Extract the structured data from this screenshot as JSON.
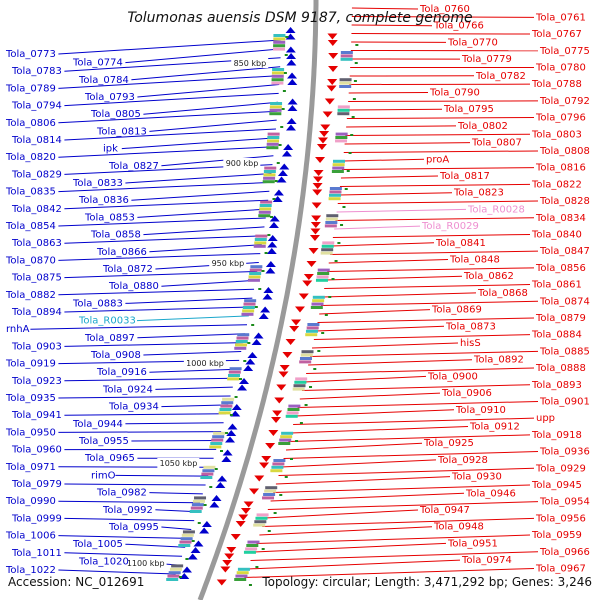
{
  "title": "Tolumonas auensis DSM 9187, complete genome",
  "footer": {
    "accession": "Accession: NC_012691",
    "summary": "Topology: circular; Length: 3,471,292 bp; Genes: 3,246"
  },
  "colors": {
    "forward": "#0000cc",
    "reverse": "#e60000",
    "rna_forward": "#1aa7cc",
    "rna_reverse": "#ee8fd0",
    "backbone": "#9a9a9a",
    "ticks": "#1a8a1a"
  },
  "kbp_markers": [
    "850 kbp",
    "900 kbp",
    "950 kbp",
    "1000 kbp",
    "1050 kbp",
    "1100 kbp"
  ],
  "left_labels": [
    "Tola_0773",
    "Tola_0774",
    "Tola_0783",
    "Tola_0784",
    "Tola_0789",
    "Tola_0793",
    "Tola_0794",
    "Tola_0805",
    "Tola_0806",
    "Tola_0813",
    "Tola_0814",
    "ipk",
    "Tola_0820",
    "Tola_0827",
    "Tola_0829",
    "Tola_0833",
    "Tola_0835",
    "Tola_0836",
    "Tola_0842",
    "Tola_0853",
    "Tola_0854",
    "Tola_0858",
    "Tola_0863",
    "Tola_0866",
    "Tola_0870",
    "Tola_0872",
    "Tola_0875",
    "Tola_0880",
    "Tola_0882",
    "Tola_0883",
    "Tola_0894",
    "Tola_R0033",
    "rnhA",
    "Tola_0897",
    "Tola_0903",
    "Tola_0908",
    "Tola_0919",
    "Tola_0916",
    "Tola_0923",
    "Tola_0924",
    "Tola_0935",
    "Tola_0934",
    "Tola_0941",
    "Tola_0944",
    "Tola_0950",
    "Tola_0955",
    "Tola_0960",
    "Tola_0965",
    "Tola_0971",
    "rimO",
    "Tola_0979",
    "Tola_0982",
    "Tola_0990",
    "Tola_0992",
    "Tola_0999",
    "Tola_0995",
    "Tola_1006",
    "Tola_1005",
    "Tola_1011",
    "Tola_1020",
    "Tola_1022"
  ],
  "right_labels": [
    "Tola_0760",
    "Tola_0761",
    "Tola_0766",
    "Tola_0767",
    "Tola_0770",
    "Tola_0775",
    "Tola_0779",
    "Tola_0780",
    "Tola_0782",
    "Tola_0788",
    "Tola_0790",
    "Tola_0792",
    "Tola_0795",
    "Tola_0796",
    "Tola_0802",
    "Tola_0803",
    "Tola_0807",
    "Tola_0808",
    "proA",
    "Tola_0816",
    "Tola_0817",
    "Tola_0822",
    "Tola_0823",
    "Tola_0828",
    "Tola_R0028",
    "Tola_0834",
    "Tola_R0029",
    "Tola_0840",
    "Tola_0841",
    "Tola_0847",
    "Tola_0848",
    "Tola_0856",
    "Tola_0862",
    "Tola_0861",
    "Tola_0868",
    "Tola_0874",
    "Tola_0869",
    "Tola_0879",
    "Tola_0873",
    "Tola_0884",
    "hisS",
    "Tola_0885",
    "Tola_0892",
    "Tola_0888",
    "Tola_0900",
    "Tola_0893",
    "Tola_0906",
    "Tola_0901",
    "Tola_0910",
    "upp",
    "Tola_0912",
    "Tola_0918",
    "Tola_0925",
    "Tola_0936",
    "Tola_0928",
    "Tola_0929",
    "Tola_0930",
    "Tola_0945",
    "Tola_0946",
    "Tola_0954",
    "Tola_0947",
    "Tola_0956",
    "Tola_0948",
    "Tola_0959",
    "Tola_0951",
    "Tola_0966",
    "Tola_0974",
    "Tola_0967"
  ]
}
